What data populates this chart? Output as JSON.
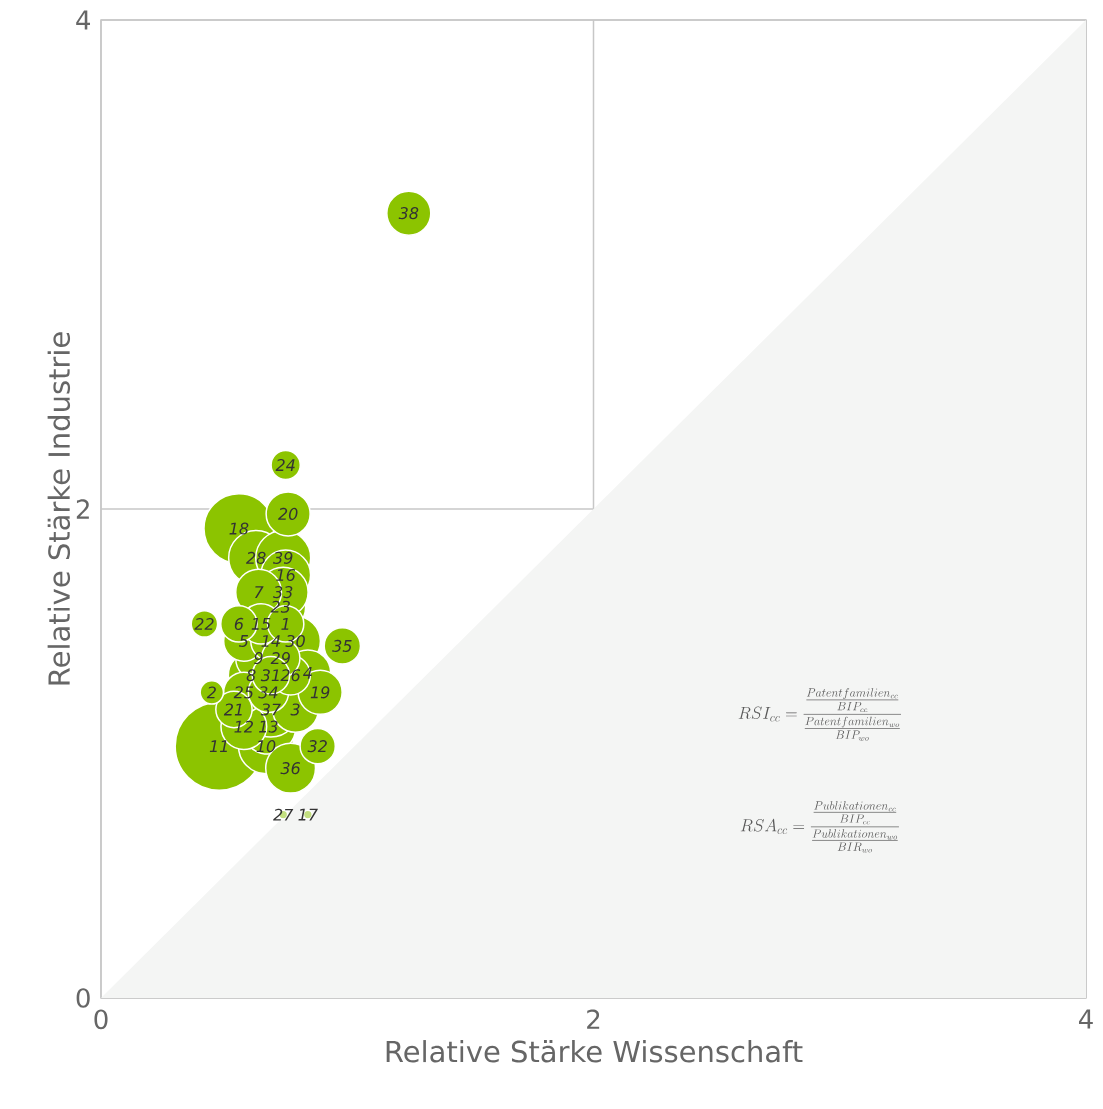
{
  "chart_data": {
    "type": "bubble",
    "xlabel": "Relative Stärke Wissenschaft",
    "ylabel": "Relative Stärke Industrie",
    "xlim": [
      0,
      4
    ],
    "ylim": [
      0,
      4
    ],
    "xticks": [
      0,
      2,
      4
    ],
    "yticks": [
      0,
      2,
      4
    ],
    "grid": true,
    "annotations": [
      "RSI_{cc} = \\frac{\\frac{Patentfamilien_{cc}}{BIP_{cc}}}{\\frac{Patentfamilien_{wo}}{BIP_{wo}}}",
      "RSA_{cc} = \\frac{\\frac{Publikationen_{cc}}{BIP_{cc}}}{\\frac{Publikationen_{wo}}{BIR_{wo}}}"
    ],
    "series": [
      {
        "type": "area",
        "color": "#f4f5f4",
        "x": [
          0,
          4
        ],
        "values": [
          0,
          4
        ]
      },
      {
        "name": "1",
        "color": "#8cc400",
        "x": [
          0.75
        ],
        "values": [
          1.53
        ],
        "sizes": [
          0.17
        ]
      },
      {
        "name": "2",
        "color": "#8cc400",
        "x": [
          0.45
        ],
        "values": [
          1.25
        ],
        "sizes": [
          0.07
        ]
      },
      {
        "name": "3",
        "color": "#8cc400",
        "x": [
          0.79
        ],
        "values": [
          1.18
        ],
        "sizes": [
          0.27
        ]
      },
      {
        "name": "4",
        "color": "#8cc400",
        "x": [
          0.84
        ],
        "values": [
          1.33
        ],
        "sizes": [
          0.27
        ]
      },
      {
        "name": "5",
        "color": "#8cc400",
        "x": [
          0.58
        ],
        "values": [
          1.46
        ],
        "sizes": [
          0.21
        ]
      },
      {
        "name": "6",
        "color": "#8cc400",
        "x": [
          0.56
        ],
        "values": [
          1.53
        ],
        "sizes": [
          0.17
        ]
      },
      {
        "name": "7",
        "color": "#8cc400",
        "x": [
          0.64
        ],
        "values": [
          1.66
        ],
        "sizes": [
          0.27
        ]
      },
      {
        "name": "8",
        "color": "#8cc400",
        "x": [
          0.61
        ],
        "values": [
          1.32
        ],
        "sizes": [
          0.27
        ]
      },
      {
        "name": "9",
        "color": "#8cc400",
        "x": [
          0.64
        ],
        "values": [
          1.39
        ],
        "sizes": [
          0.27
        ]
      },
      {
        "name": "10",
        "color": "#8cc400",
        "x": [
          0.67
        ],
        "values": [
          1.03
        ],
        "sizes": [
          0.39
        ]
      },
      {
        "name": "11",
        "color": "#8cc400",
        "x": [
          0.48
        ],
        "values": [
          1.03
        ],
        "sizes": [
          1
        ]
      },
      {
        "name": "12",
        "color": "#8cc400",
        "x": [
          0.58
        ],
        "values": [
          1.11
        ],
        "sizes": [
          0.27
        ]
      },
      {
        "name": "13",
        "color": "#8cc400",
        "x": [
          0.68
        ],
        "values": [
          1.11
        ],
        "sizes": [
          0.39
        ]
      },
      {
        "name": "14",
        "color": "#8cc400",
        "x": [
          0.69
        ],
        "values": [
          1.46
        ],
        "sizes": [
          0.21
        ]
      },
      {
        "name": "15",
        "color": "#8cc400",
        "x": [
          0.65
        ],
        "values": [
          1.53
        ],
        "sizes": [
          0.21
        ]
      },
      {
        "name": "16",
        "color": "#8cc400",
        "x": [
          0.75
        ],
        "values": [
          1.73
        ],
        "sizes": [
          0.32
        ]
      },
      {
        "name": "17",
        "color": "#c3df80",
        "x": [
          0.84
        ],
        "values": [
          0.75
        ],
        "sizes": [
          0.01
        ]
      },
      {
        "name": "18",
        "color": "#8cc400",
        "x": [
          0.56
        ],
        "values": [
          1.92
        ],
        "sizes": [
          0.63
        ]
      },
      {
        "name": "19",
        "color": "#8cc400",
        "x": [
          0.89
        ],
        "values": [
          1.25
        ],
        "sizes": [
          0.25
        ]
      },
      {
        "name": "20",
        "color": "#8cc400",
        "x": [
          0.76
        ],
        "values": [
          1.98
        ],
        "sizes": [
          0.25
        ]
      },
      {
        "name": "21",
        "color": "#8cc400",
        "x": [
          0.54
        ],
        "values": [
          1.18
        ],
        "sizes": [
          0.17
        ]
      },
      {
        "name": "22",
        "color": "#8cc400",
        "x": [
          0.42
        ],
        "values": [
          1.53
        ],
        "sizes": [
          0.09
        ]
      },
      {
        "name": "23",
        "color": "#8cc400",
        "x": [
          0.73
        ],
        "values": [
          1.6
        ],
        "sizes": [
          0.32
        ]
      },
      {
        "name": "24",
        "color": "#8cc400",
        "x": [
          0.75
        ],
        "values": [
          2.18
        ],
        "sizes": [
          0.11
        ]
      },
      {
        "name": "25",
        "color": "#8cc400",
        "x": [
          0.58
        ],
        "values": [
          1.25
        ],
        "sizes": [
          0.21
        ]
      },
      {
        "name": "26",
        "color": "#8cc400",
        "x": [
          0.77
        ],
        "values": [
          1.32
        ],
        "sizes": [
          0.2
        ]
      },
      {
        "name": "27",
        "color": "#c3df80",
        "x": [
          0.74
        ],
        "values": [
          0.75
        ],
        "sizes": [
          0.01
        ]
      },
      {
        "name": "28",
        "color": "#8cc400",
        "x": [
          0.63
        ],
        "values": [
          1.8
        ],
        "sizes": [
          0.39
        ]
      },
      {
        "name": "29",
        "color": "#8cc400",
        "x": [
          0.73
        ],
        "values": [
          1.39
        ],
        "sizes": [
          0.19
        ]
      },
      {
        "name": "30",
        "color": "#8cc400",
        "x": [
          0.79
        ],
        "values": [
          1.46
        ],
        "sizes": [
          0.32
        ]
      },
      {
        "name": "31",
        "color": "#8cc400",
        "x": [
          0.69
        ],
        "values": [
          1.32
        ],
        "sizes": [
          0.18
        ]
      },
      {
        "name": "32",
        "color": "#8cc400",
        "x": [
          0.88
        ],
        "values": [
          1.03
        ],
        "sizes": [
          0.16
        ]
      },
      {
        "name": "33",
        "color": "#8cc400",
        "x": [
          0.74
        ],
        "values": [
          1.66
        ],
        "sizes": [
          0.32
        ]
      },
      {
        "name": "34",
        "color": "#8cc400",
        "x": [
          0.68
        ],
        "values": [
          1.25
        ],
        "sizes": [
          0.21
        ]
      },
      {
        "name": "35",
        "color": "#8cc400",
        "x": [
          0.98
        ],
        "values": [
          1.44
        ],
        "sizes": [
          0.17
        ]
      },
      {
        "name": "36",
        "color": "#8cc400",
        "x": [
          0.77
        ],
        "values": [
          0.94
        ],
        "sizes": [
          0.32
        ]
      },
      {
        "name": "37",
        "color": "#8cc400",
        "x": [
          0.69
        ],
        "values": [
          1.18
        ],
        "sizes": [
          0.39
        ]
      },
      {
        "name": "38",
        "color": "#8cc400",
        "x": [
          1.25
        ],
        "values": [
          3.21
        ],
        "sizes": [
          0.25
        ]
      },
      {
        "name": "39",
        "color": "#8cc400",
        "x": [
          0.74
        ],
        "values": [
          1.8
        ],
        "sizes": [
          0.39
        ]
      }
    ]
  }
}
